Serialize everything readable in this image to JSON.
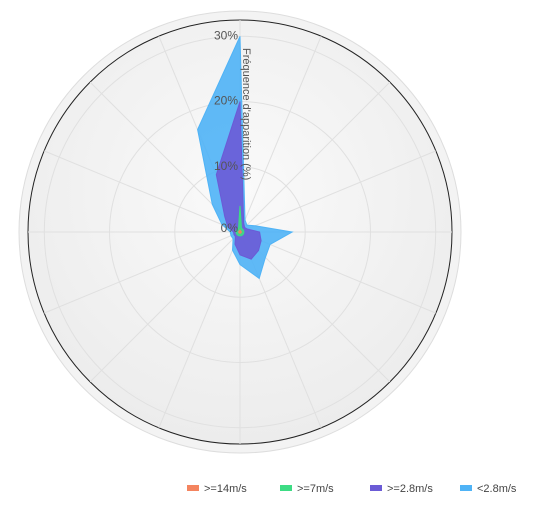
{
  "chart_data": {
    "type": "windrose",
    "axis_label": "Fréquence d'apparition (%)",
    "categories": [
      null,
      null,
      null,
      null,
      null,
      null,
      null,
      null,
      null,
      null,
      null,
      null,
      null,
      null,
      null,
      null
    ],
    "ylim": [
      0,
      32.5
    ],
    "yticks": [
      {
        "value": 0,
        "label": "0%"
      },
      {
        "value": 10,
        "label": "10%"
      },
      {
        "value": 20,
        "label": "20%"
      },
      {
        "value": 30,
        "label": "30%"
      }
    ],
    "stacked": true,
    "grid": true,
    "legend": "bottom-right",
    "series": [
      {
        "name": ">=14m/s",
        "color": "#f4845f",
        "values": [
          0.3,
          0.2,
          0.2,
          0.2,
          0.2,
          0.2,
          0.2,
          0.2,
          0.2,
          0.2,
          0.2,
          0.2,
          0.2,
          0.2,
          0.2,
          0.2
        ]
      },
      {
        "name": ">=7m/s",
        "color": "#3ddc84",
        "values": [
          3.7,
          0.4,
          0.4,
          0.4,
          0.4,
          0.4,
          0.4,
          0.4,
          0.4,
          0.4,
          0.4,
          0.4,
          0.4,
          0.4,
          0.4,
          0.4
        ]
      },
      {
        "name": ">=2.8m/s",
        "color": "#6b5bd6",
        "values": [
          16,
          0.9,
          0.4,
          0.6,
          2.4,
          2.9,
          3.4,
          3.9,
          2.9,
          1.4,
          0.4,
          0.4,
          0.4,
          1.4,
          2.7,
          8.9
        ]
      },
      {
        "name": "<2.8m/s",
        "color": "#4fb3f6",
        "values": [
          10,
          0.5,
          0.5,
          1.3,
          5,
          1.5,
          1.5,
          3.2,
          1.5,
          1,
          0.5,
          0.5,
          0.5,
          1,
          2.7,
          7.5
        ]
      }
    ]
  }
}
